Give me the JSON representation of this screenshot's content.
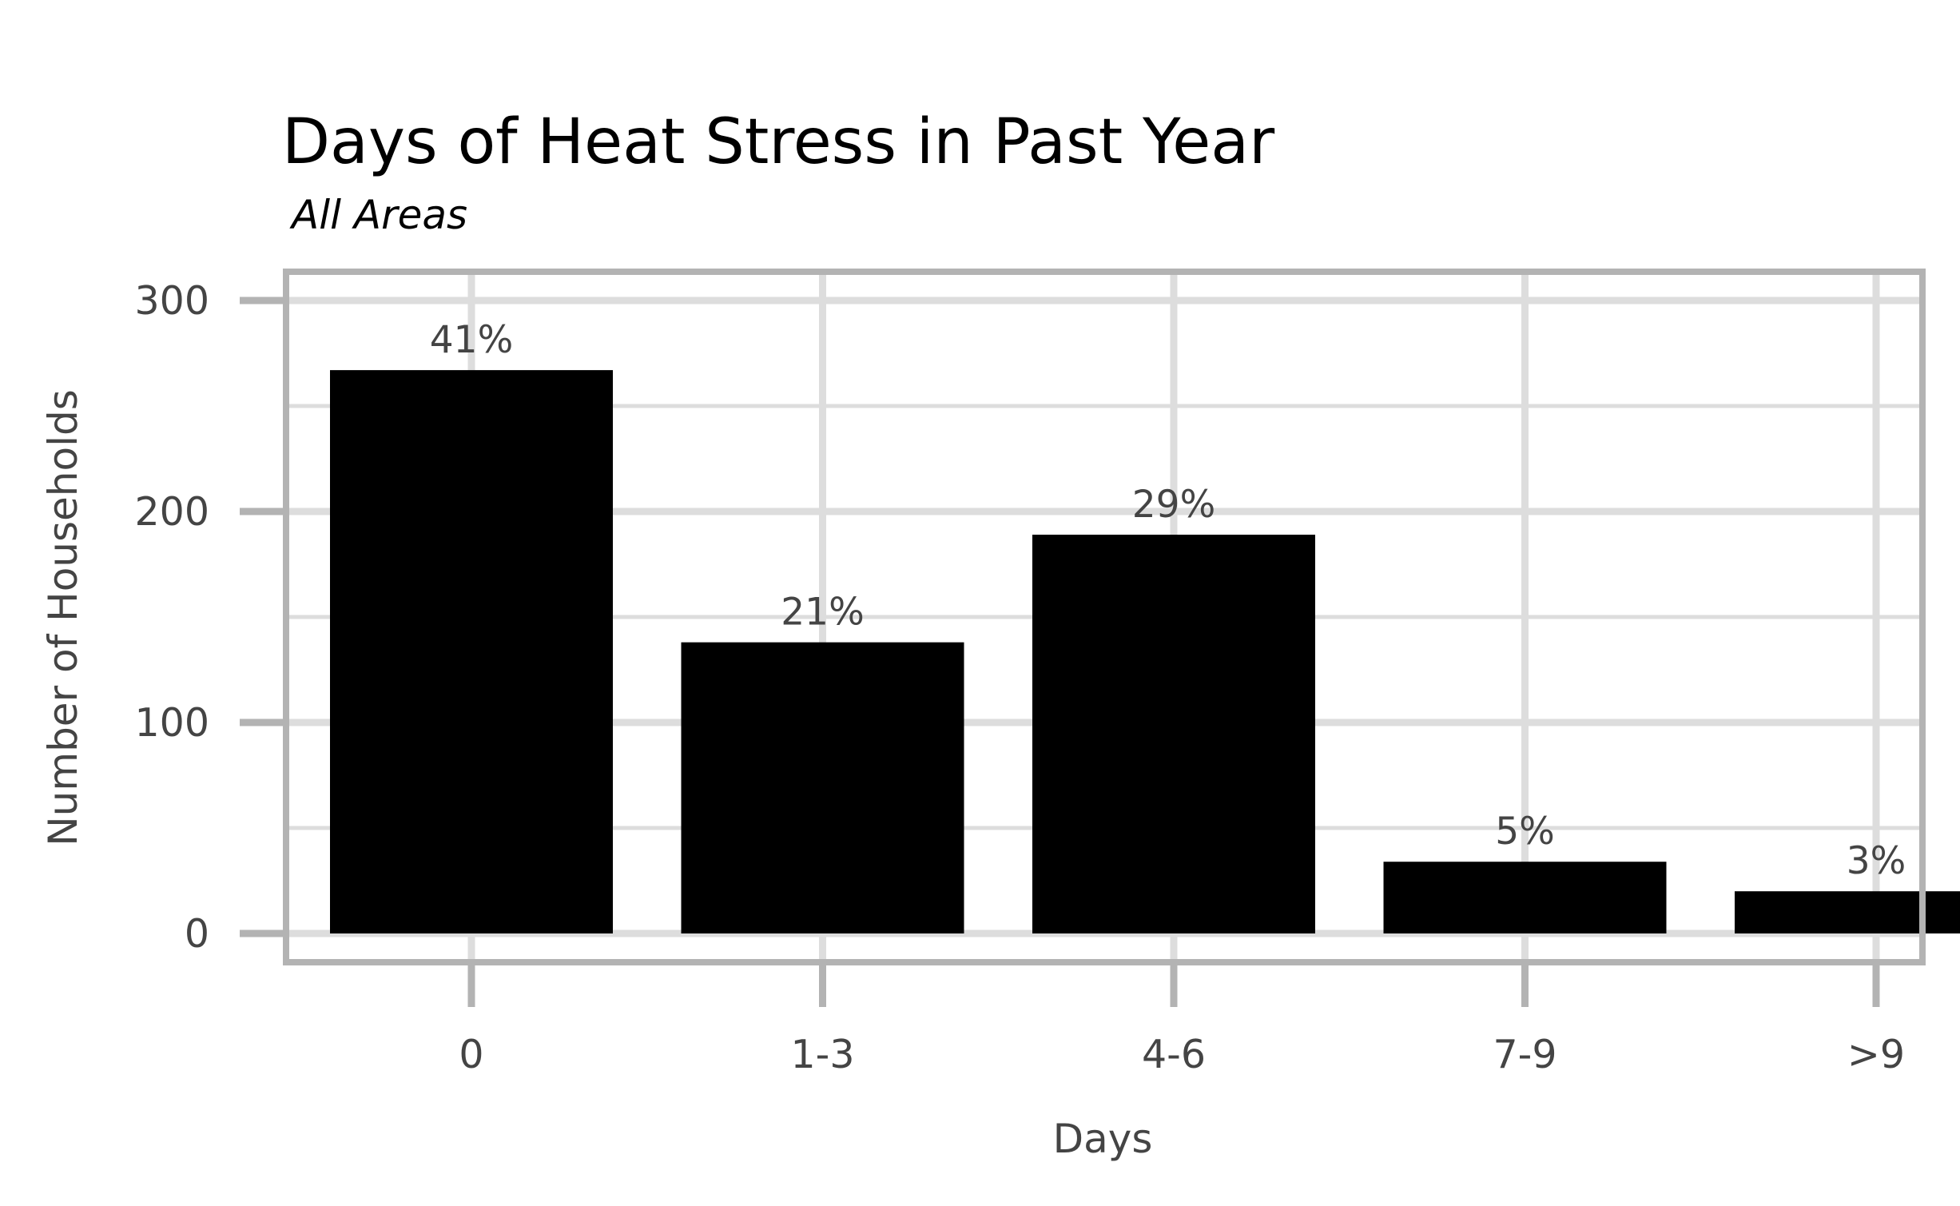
{
  "chart_data": {
    "type": "bar",
    "title": "Days of Heat Stress in Past Year",
    "subtitle": "All Areas",
    "xlabel": "Days",
    "ylabel": "Number of Households",
    "categories": [
      "0",
      "1-3",
      "4-6",
      "7-9",
      ">9"
    ],
    "values": [
      267,
      138,
      189,
      34,
      20
    ],
    "data_labels": [
      "41%",
      "21%",
      "29%",
      "5%",
      "3%"
    ],
    "y_ticks": [
      "0",
      "100",
      "200",
      "300"
    ],
    "ylim": [
      0,
      300
    ],
    "grid": true,
    "legend": "none",
    "colors": {
      "bar": "#000000",
      "grid": "#dddddd",
      "frame": "#b3b3b3",
      "tick_mark": "#b3b3b3",
      "text": "#444444"
    }
  }
}
